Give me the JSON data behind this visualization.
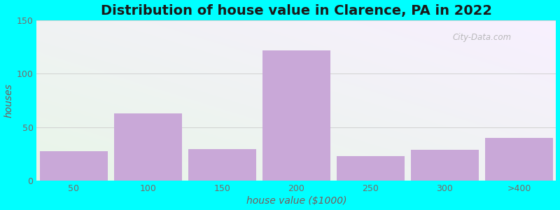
{
  "title": "Distribution of house value in Clarence, PA in 2022",
  "xlabel": "house value ($1000)",
  "ylabel": "houses",
  "categories": [
    "50",
    "100",
    "150",
    "200",
    "250",
    "300",
    ">400"
  ],
  "values": [
    28,
    63,
    30,
    122,
    23,
    29,
    40
  ],
  "bar_color": "#C9A8D8",
  "ylim": [
    0,
    150
  ],
  "yticks": [
    0,
    50,
    100,
    150
  ],
  "background_color": "#00FFFF",
  "gradient_top_left": "#E8F5E8",
  "gradient_bottom_right": "#F8F0FF",
  "title_fontsize": 14,
  "label_fontsize": 10,
  "tick_fontsize": 9,
  "bar_width": 0.92,
  "watermark": "City-Data.com",
  "tick_color": "#7a6a6a",
  "label_color": "#7a5a5a"
}
